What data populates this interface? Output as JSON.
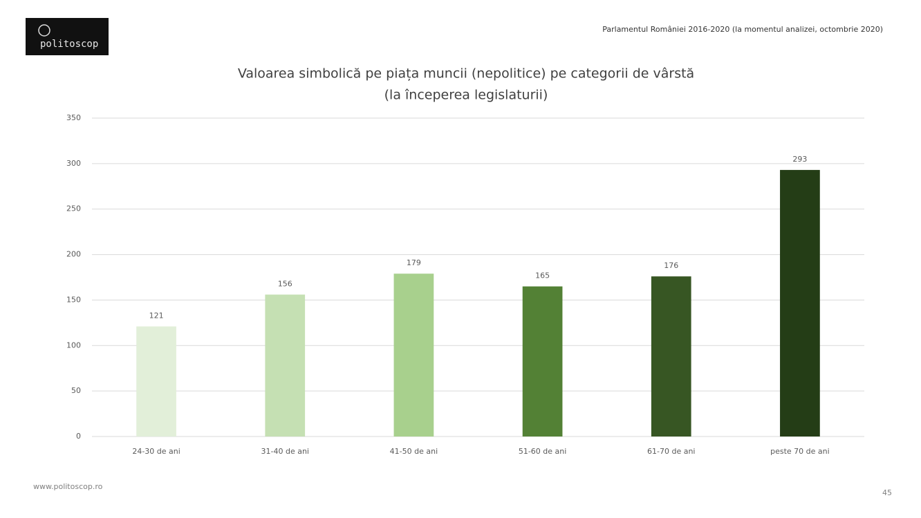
{
  "header": {
    "logo": "politoscop",
    "note": "Parlamentul României 2016-2020 (la momentul analizei, octombrie 2020)"
  },
  "chart_data": {
    "type": "bar",
    "title": "Valoarea simbolică pe piața muncii (nepolitice) pe categorii de vârstă",
    "subtitle": "(la începerea legislaturii)",
    "categories": [
      "24-30 de ani",
      "31-40 de ani",
      "41-50 de ani",
      "51-60 de ani",
      "61-70 de ani",
      "peste 70 de ani"
    ],
    "values": [
      121,
      156,
      179,
      165,
      176,
      293
    ],
    "colors": [
      "#e2efd9",
      "#c5e0b3",
      "#a8d08d",
      "#538135",
      "#375623",
      "#243d16"
    ],
    "ylim": [
      0,
      350
    ],
    "yticks": [
      0,
      50,
      100,
      150,
      200,
      250,
      300,
      350
    ],
    "grid": true
  },
  "footer": {
    "url": "www.politoscop.ro",
    "page": "45"
  }
}
